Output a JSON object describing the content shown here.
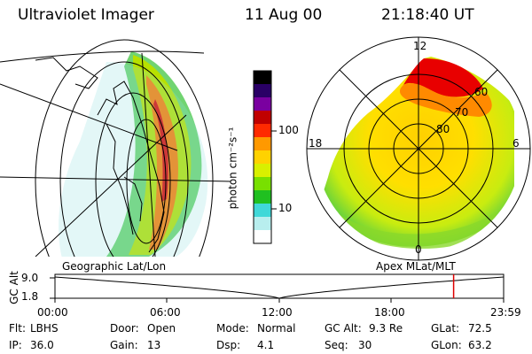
{
  "header": {
    "title": "Ultraviolet Imager",
    "date": "11 Aug 00",
    "time": "21:18:40 UT"
  },
  "colorbar": {
    "label": "photon cm⁻²s⁻¹",
    "ticks": [
      "100",
      "10"
    ],
    "colors": [
      "#000000",
      "#2a0066",
      "#7a00a0",
      "#c00000",
      "#ff2a00",
      "#ff9900",
      "#ffd200",
      "#d8f000",
      "#78e000",
      "#20c020",
      "#40d8d8",
      "#b8eeee",
      "#ffffff"
    ]
  },
  "panels": {
    "left_label": "Geographic Lat/Lon",
    "right_label": "Apex  MLat/MLT",
    "polar": {
      "mlt_labels": {
        "top": "12",
        "left": "18",
        "right": "6",
        "bottom": "0"
      },
      "lat_labels": [
        "60",
        "70",
        "80"
      ]
    }
  },
  "altitude_plot": {
    "axis_title": "GC Alt",
    "y_ticks": [
      "9.0",
      "1.8"
    ],
    "x_ticks": [
      "00:00",
      "06:00",
      "12:00",
      "18:00",
      "23:59"
    ],
    "marker_time": "21:18:40",
    "marker_color": "#dd0000"
  },
  "info": {
    "row1": [
      {
        "label": "Flt:",
        "value": "LBHS"
      },
      {
        "label": "Door:",
        "value": "Open"
      },
      {
        "label": "Mode:",
        "value": "Normal"
      },
      {
        "label": "GC Alt:",
        "value": "9.3 Re"
      },
      {
        "label": "GLat:",
        "value": "72.5"
      }
    ],
    "row2": [
      {
        "label": "IP:",
        "value": "36.0"
      },
      {
        "label": "Gain:",
        "value": "13"
      },
      {
        "label": "Dsp:",
        "value": "4.1"
      },
      {
        "label": "Seq:",
        "value": "30"
      },
      {
        "label": "GLon:",
        "value": "63.2"
      }
    ]
  }
}
